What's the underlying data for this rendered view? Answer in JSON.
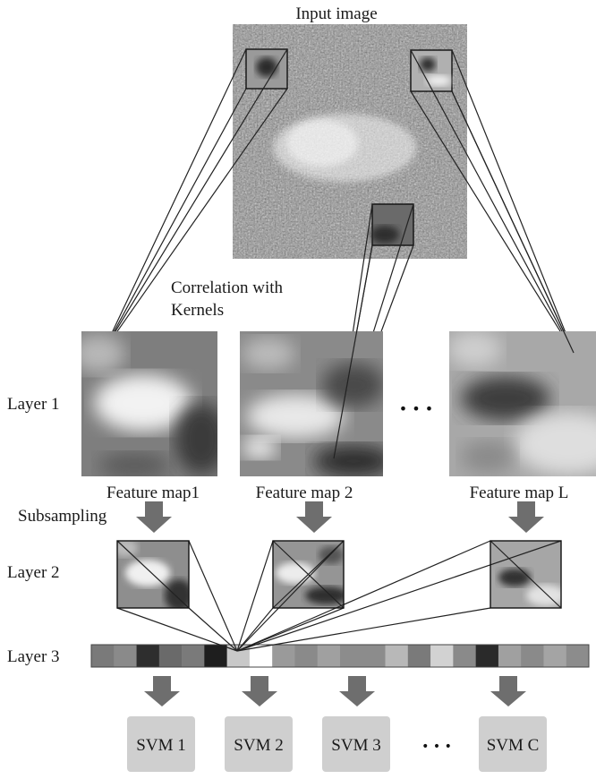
{
  "diagram": {
    "input_label": "Input image",
    "correlation_label": [
      "Correlation with",
      "Kernels"
    ],
    "layer_labels": [
      "Layer 1",
      "Layer 2",
      "Layer 3"
    ],
    "subsampling_label": "Subsampling",
    "feature_maps": [
      "Feature map1",
      "Feature map 2",
      "Feature map L"
    ],
    "svms": [
      "SVM 1",
      "SVM 2",
      "SVM 3",
      "SVM C"
    ],
    "ellipsis": "•  •  •",
    "layer3_cells": [
      "#7a7a7a",
      "#8a8a8a",
      "#2e2e2e",
      "#6a6a6a",
      "#7a7a7a",
      "#1e1e1e",
      "#c8c8c8",
      "#ffffff",
      "#9a9a9a",
      "#8a8a8a",
      "#a0a0a0",
      "#8c8c8c",
      "#8c8c8c",
      "#b8b8b8",
      "#7a7a7a",
      "#d2d2d2",
      "#8a8a8a",
      "#2a2a2a",
      "#a0a0a0",
      "#8a8a8a",
      "#a4a4a4",
      "#8c8c8c"
    ],
    "colors": {
      "arrow": "#6e6e6e",
      "svm_box": "#cfcfcf",
      "line": "#222222"
    }
  }
}
